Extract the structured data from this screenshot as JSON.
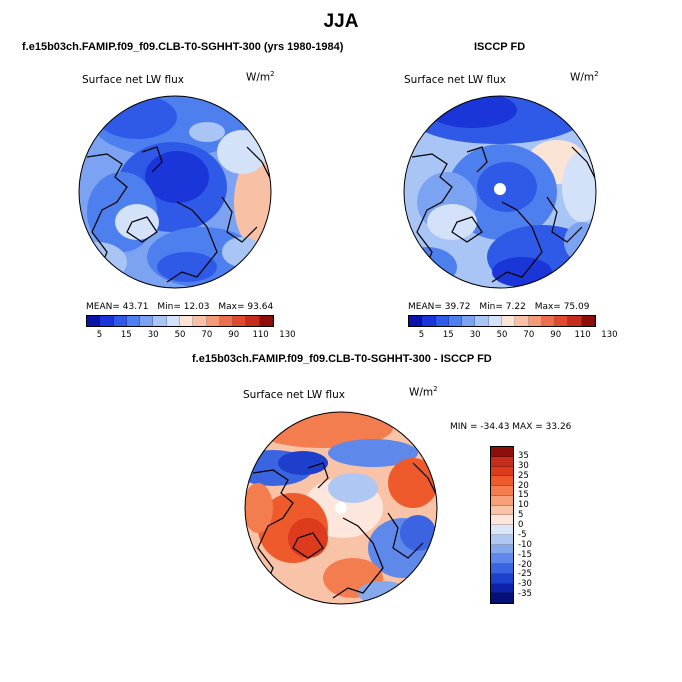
{
  "title": "JJA",
  "panels": {
    "model": {
      "title": "f.e15b03ch.FAMIP.f09_f09.CLB-T0-SGHHT-300 (yrs 1980-1984)",
      "variable": "Surface net LW flux",
      "units_base": "W/m",
      "units_exp": "2",
      "stats": {
        "mean": "MEAN=  43.71",
        "min": "Min=   12.03",
        "max": "Max=   93.64"
      }
    },
    "obs": {
      "title": "ISCCP FD",
      "variable": "Surface net LW flux",
      "units_base": "W/m",
      "units_exp": "2",
      "stats": {
        "mean": "MEAN=  39.72",
        "min": "Min=    7.22",
        "max": "Max=   75.09"
      }
    },
    "diff": {
      "title": "f.e15b03ch.FAMIP.f09_f09.CLB-T0-SGHHT-300 - ISCCP FD",
      "variable": "Surface net LW flux",
      "units_base": "W/m",
      "units_exp": "2",
      "stats": {
        "minmax": "MIN = -34.43  MAX =  33.26"
      }
    }
  },
  "colorbar_abs": {
    "labels": [
      "5",
      "15",
      "30",
      "50",
      "70",
      "90",
      "110",
      "130"
    ],
    "colors": [
      "#0a14a8",
      "#1a35d8",
      "#2f5ae8",
      "#4d7fee",
      "#7ba3f2",
      "#a9c5f5",
      "#d3e2f8",
      "#fbe3d6",
      "#f8c0a5",
      "#f39a78",
      "#ec6e4e",
      "#dd4a2e",
      "#c42c1c",
      "#8e0f0a"
    ]
  },
  "colorbar_diff": {
    "labels": [
      "35",
      "30",
      "25",
      "20",
      "15",
      "10",
      "5",
      "0",
      "-5",
      "-10",
      "-15",
      "-20",
      "-25",
      "-30",
      "-35"
    ],
    "colors": [
      "#8e0f0a",
      "#c42c1c",
      "#dd3a1e",
      "#ee5a2c",
      "#f47d50",
      "#f7a07a",
      "#f9c3a8",
      "#fde6dc",
      "#dae6f8",
      "#aec8f3",
      "#86a9ee",
      "#5e88ea",
      "#3a64e0",
      "#1e3fcc",
      "#0d22a8",
      "#06107a"
    ]
  }
}
